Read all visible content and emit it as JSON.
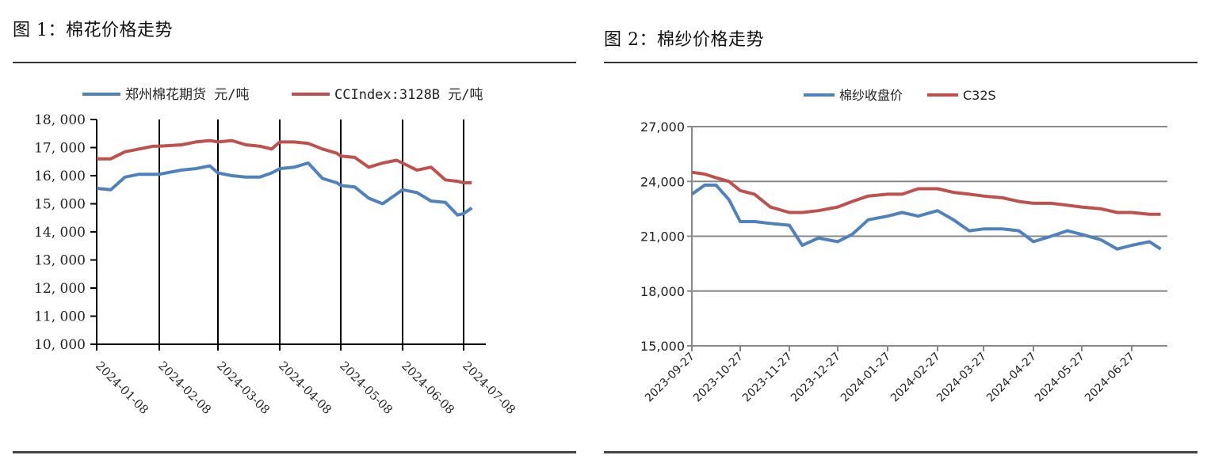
{
  "figures": [
    {
      "title": "图 1：棉花价格走势"
    },
    {
      "title": "图 2：棉纱价格走势"
    }
  ],
  "colors": {
    "blue": "#4F81BD",
    "red": "#C0504D",
    "axis1": "#000000",
    "axis2": "#888888"
  },
  "chart_data": [
    {
      "type": "line",
      "title": "图 1：棉花价格走势",
      "xlabel": "",
      "ylabel": "",
      "ylim": [
        10000,
        18000
      ],
      "yticks": [
        "18, 000",
        "17, 000",
        "16, 000",
        "15, 000",
        "14, 000",
        "13, 000",
        "12, 000",
        "11, 000",
        "10, 000"
      ],
      "ytick_values": [
        18000,
        17000,
        16000,
        15000,
        14000,
        13000,
        12000,
        11000,
        10000
      ],
      "categories": [
        "2024-01-08",
        "2024-02-08",
        "2024-03-08",
        "2024-04-08",
        "2024-05-08",
        "2024-06-08",
        "2024-07-08"
      ],
      "grid": "vertical lines at each month tick",
      "legend_position": "top",
      "x": [
        "2024-01-08",
        "2024-01-15",
        "2024-01-22",
        "2024-01-29",
        "2024-02-05",
        "2024-02-08",
        "2024-02-19",
        "2024-02-26",
        "2024-03-04",
        "2024-03-08",
        "2024-03-15",
        "2024-03-22",
        "2024-03-29",
        "2024-04-04",
        "2024-04-08",
        "2024-04-15",
        "2024-04-22",
        "2024-04-29",
        "2024-05-06",
        "2024-05-08",
        "2024-05-15",
        "2024-05-22",
        "2024-05-29",
        "2024-06-05",
        "2024-06-08",
        "2024-06-15",
        "2024-06-22",
        "2024-06-29",
        "2024-07-05",
        "2024-07-08",
        "2024-07-12"
      ],
      "series": [
        {
          "name": "郑州棉花期货 元/吨",
          "color": "#4F81BD",
          "values": [
            15550,
            15500,
            15950,
            16050,
            16050,
            16050,
            16200,
            16250,
            16350,
            16100,
            16000,
            15950,
            15950,
            16100,
            16250,
            16300,
            16450,
            15900,
            15750,
            15650,
            15600,
            15200,
            15000,
            15350,
            15500,
            15400,
            15100,
            15050,
            14600,
            14650,
            14850
          ]
        },
        {
          "name": "CCIndex:3128B 元/吨",
          "color": "#C0504D",
          "values": [
            16600,
            16600,
            16850,
            16950,
            17050,
            17050,
            17100,
            17200,
            17250,
            17200,
            17250,
            17100,
            17050,
            16950,
            17200,
            17200,
            17150,
            16950,
            16800,
            16700,
            16650,
            16300,
            16450,
            16550,
            16450,
            16200,
            16300,
            15850,
            15800,
            15750,
            15750
          ]
        }
      ]
    },
    {
      "type": "line",
      "title": "图 2：棉纱价格走势",
      "xlabel": "",
      "ylabel": "",
      "ylim": [
        15000,
        27000
      ],
      "yticks": [
        "27,000",
        "24,000",
        "21,000",
        "18,000",
        "15,000"
      ],
      "ytick_values": [
        27000,
        24000,
        21000,
        18000,
        15000
      ],
      "categories": [
        "2023-09-27",
        "2023-10-27",
        "2023-11-27",
        "2023-12-27",
        "2024-01-27",
        "2024-02-27",
        "2024-03-27",
        "2024-04-27",
        "2024-05-27",
        "2024-06-27"
      ],
      "grid": "horizontal lines at each y tick",
      "legend_position": "top",
      "x": [
        "2023-09-27",
        "2023-10-05",
        "2023-10-12",
        "2023-10-20",
        "2023-10-27",
        "2023-11-05",
        "2023-11-15",
        "2023-11-27",
        "2023-12-05",
        "2023-12-15",
        "2023-12-27",
        "2024-01-05",
        "2024-01-15",
        "2024-01-27",
        "2024-02-05",
        "2024-02-15",
        "2024-02-27",
        "2024-03-08",
        "2024-03-18",
        "2024-03-27",
        "2024-04-08",
        "2024-04-18",
        "2024-04-27",
        "2024-05-08",
        "2024-05-18",
        "2024-05-27",
        "2024-06-08",
        "2024-06-18",
        "2024-06-27",
        "2024-07-08",
        "2024-07-15"
      ],
      "series": [
        {
          "name": "棉纱收盘价",
          "color": "#4F81BD",
          "values": [
            23300,
            23800,
            23800,
            23000,
            21800,
            21800,
            21700,
            21600,
            20500,
            20900,
            20700,
            21100,
            21900,
            22100,
            22300,
            22100,
            22400,
            21900,
            21300,
            21400,
            21400,
            21300,
            20700,
            21000,
            21300,
            21100,
            20800,
            20300,
            20500,
            20700,
            20300
          ]
        },
        {
          "name": "C32S",
          "color": "#C0504D",
          "values": [
            24500,
            24400,
            24200,
            24000,
            23500,
            23300,
            22600,
            22300,
            22300,
            22400,
            22600,
            22900,
            23200,
            23300,
            23300,
            23600,
            23600,
            23400,
            23300,
            23200,
            23100,
            22900,
            22800,
            22800,
            22700,
            22600,
            22500,
            22300,
            22300,
            22200,
            22200
          ]
        }
      ]
    }
  ]
}
